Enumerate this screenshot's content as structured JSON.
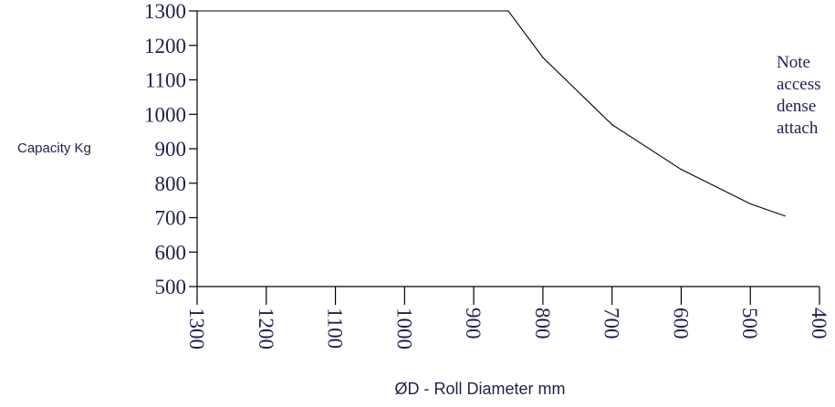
{
  "chart_data": {
    "type": "line",
    "title": "",
    "xlabel": "ØD - Roll Diameter mm",
    "ylabel": "Capacity Kg",
    "xlim": [
      1300,
      400
    ],
    "ylim": [
      500,
      1300
    ],
    "x_reversed": true,
    "xticks": [
      "1300",
      "1200",
      "1100",
      "1000",
      "900",
      "800",
      "700",
      "600",
      "500",
      "400"
    ],
    "yticks": [
      "1300",
      "1200",
      "1100",
      "1000",
      "900",
      "800",
      "700",
      "600",
      "500"
    ],
    "grid": false,
    "series": [
      {
        "x": [
          1300,
          850,
          800,
          700,
          600,
          500,
          450
        ],
        "y": [
          1300,
          1300,
          1165,
          970,
          840,
          740,
          705
        ]
      }
    ],
    "annotation_lines": [
      "Note",
      "access",
      "dense",
      "attach"
    ],
    "colors": {
      "text": "#1c2150",
      "line": "#000000"
    }
  }
}
